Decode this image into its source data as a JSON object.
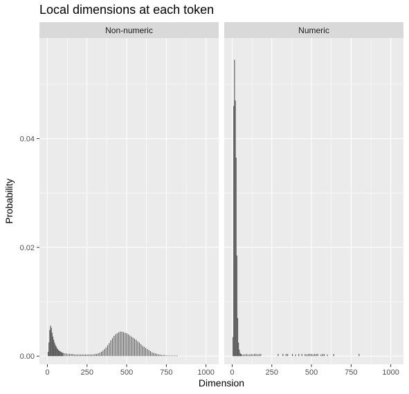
{
  "chart_data": {
    "type": "bar",
    "title": "Local dimensions at each token",
    "xlabel": "Dimension",
    "ylabel": "Probability",
    "xlim": [
      -50,
      1080
    ],
    "ylim": [
      -0.0015,
      0.0585
    ],
    "x_ticks": [
      0,
      250,
      500,
      750,
      1000
    ],
    "x_tick_labels": [
      "0",
      "250",
      "500",
      "750",
      "1000"
    ],
    "y_ticks": [
      0.0,
      0.02,
      0.04
    ],
    "y_tick_labels": [
      "0.00",
      "0.02",
      "0.04"
    ],
    "grid": true,
    "legend": "none",
    "bar_color": "#595959",
    "panel_background": "#ebebeb",
    "strip_background": "#d9d9d9",
    "facets": [
      {
        "label": "Non-numeric",
        "series": [
          {
            "x": [
              5,
              10,
              15,
              20,
              25,
              30,
              35,
              40,
              45,
              50,
              55,
              60,
              65,
              70,
              75,
              80,
              85,
              90,
              95,
              100,
              110,
              120,
              130,
              140,
              150,
              160,
              170,
              180,
              190,
              200,
              210,
              220,
              230,
              240,
              250,
              260,
              270,
              280,
              290,
              300,
              310,
              320,
              330,
              340,
              350,
              360,
              370,
              380,
              390,
              400,
              410,
              420,
              430,
              440,
              450,
              460,
              470,
              480,
              490,
              500,
              510,
              520,
              530,
              540,
              550,
              560,
              570,
              580,
              590,
              600,
              610,
              620,
              630,
              640,
              650,
              660,
              670,
              680,
              690,
              700,
              710,
              720,
              730,
              740,
              750,
              760,
              770,
              780,
              790,
              800,
              810,
              820
            ],
            "y": [
              0.0008,
              0.0025,
              0.0048,
              0.0056,
              0.0052,
              0.0043,
              0.0036,
              0.003,
              0.0025,
              0.0021,
              0.0018,
              0.0015,
              0.0013,
              0.0011,
              0.001,
              0.0009,
              0.0008,
              0.0007,
              0.0006,
              0.0006,
              0.0005,
              0.0005,
              0.0004,
              0.0004,
              0.0004,
              0.0004,
              0.0003,
              0.0003,
              0.0003,
              0.0003,
              0.0003,
              0.0003,
              0.0003,
              0.0003,
              0.0003,
              0.0003,
              0.0003,
              0.0003,
              0.0003,
              0.0004,
              0.0004,
              0.0005,
              0.0006,
              0.0008,
              0.001,
              0.0013,
              0.0016,
              0.002,
              0.0024,
              0.0029,
              0.0033,
              0.0037,
              0.004,
              0.0042,
              0.0044,
              0.0045,
              0.0045,
              0.0044,
              0.0043,
              0.0042,
              0.004,
              0.0038,
              0.0036,
              0.0034,
              0.0032,
              0.003,
              0.0027,
              0.0025,
              0.0022,
              0.0019,
              0.0017,
              0.0015,
              0.0013,
              0.0011,
              0.0009,
              0.0007,
              0.0006,
              0.0005,
              0.0004,
              0.0003,
              0.0003,
              0.0002,
              0.0002,
              0.0002,
              0.0001,
              0.0001,
              0.0001,
              0.0001,
              0.0001,
              0.0001,
              0.0001,
              0.0001
            ]
          }
        ]
      },
      {
        "label": "Numeric",
        "series": [
          {
            "x": [
              5,
              10,
              15,
              20,
              25,
              30,
              35,
              40,
              45,
              50,
              55,
              60,
              70,
              80,
              90,
              100,
              110,
              120,
              130,
              140,
              150,
              160,
              170,
              180,
              290,
              320,
              340,
              350,
              380,
              400,
              420,
              440,
              460,
              470,
              480,
              490,
              500,
              510,
              520,
              530,
              540,
              560,
              570,
              580,
              600,
              640,
              800
            ],
            "y": [
              0.0035,
              0.046,
              0.0545,
              0.047,
              0.0365,
              0.0185,
              0.007,
              0.0025,
              0.0012,
              0.0006,
              0.0004,
              0.0003,
              0.0003,
              0.0003,
              0.0004,
              0.0003,
              0.0003,
              0.0004,
              0.0003,
              0.0004,
              0.0004,
              0.0003,
              0.0004,
              0.0004,
              0.0004,
              0.0004,
              0.0004,
              0.0004,
              0.0004,
              0.0003,
              0.0004,
              0.0004,
              0.0004,
              0.0003,
              0.0004,
              0.0004,
              0.0004,
              0.0003,
              0.0004,
              0.0004,
              0.0004,
              0.0003,
              0.0004,
              0.0004,
              0.0003,
              0.0004,
              0.0004
            ]
          }
        ]
      }
    ]
  }
}
